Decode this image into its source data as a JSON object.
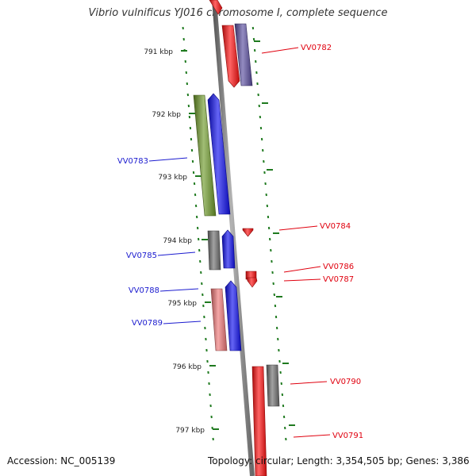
{
  "title": "Vibrio vulnificus YJ016 chromosome I, complete sequence",
  "accession": "Accession: NC_005139",
  "summary": "Topology: circular; Length: 3,354,505 bp; Genes: 3,386",
  "colors": {
    "forward_label": "#e0000e",
    "reverse_label": "#1b1bcf",
    "ruler": "#1f7a1f",
    "backbone": "#8a8a8a",
    "red": "#ff1010",
    "blue": "#1010f0",
    "purple": "#5a4ea0",
    "olive": "#6f9a2a",
    "gray": "#707070",
    "pink": "#f07878"
  },
  "ruler_ticks": [
    {
      "kbp": 791,
      "label": "791 kbp"
    },
    {
      "kbp": 792,
      "label": "792 kbp"
    },
    {
      "kbp": 793,
      "label": "793 kbp"
    },
    {
      "kbp": 794,
      "label": "794 kbp"
    },
    {
      "kbp": 795,
      "label": "795 kbp"
    },
    {
      "kbp": 796,
      "label": "796 kbp"
    },
    {
      "kbp": 797,
      "label": "797 kbp"
    }
  ],
  "gene_labels": [
    {
      "id": "vv0782",
      "text": "VV0782",
      "strand": "forward"
    },
    {
      "id": "vv0783",
      "text": "VV0783",
      "strand": "reverse"
    },
    {
      "id": "vv0784",
      "text": "VV0784",
      "strand": "forward"
    },
    {
      "id": "vv0785",
      "text": "VV0785",
      "strand": "reverse"
    },
    {
      "id": "vv0786",
      "text": "VV0786",
      "strand": "forward"
    },
    {
      "id": "vv0787",
      "text": "VV0787",
      "strand": "forward"
    },
    {
      "id": "vv0788",
      "text": "VV0788",
      "strand": "reverse"
    },
    {
      "id": "vv0789",
      "text": "VV0789",
      "strand": "reverse"
    },
    {
      "id": "vv0790",
      "text": "VV0790",
      "strand": "forward"
    },
    {
      "id": "vv0791",
      "text": "VV0791",
      "strand": "forward"
    }
  ]
}
